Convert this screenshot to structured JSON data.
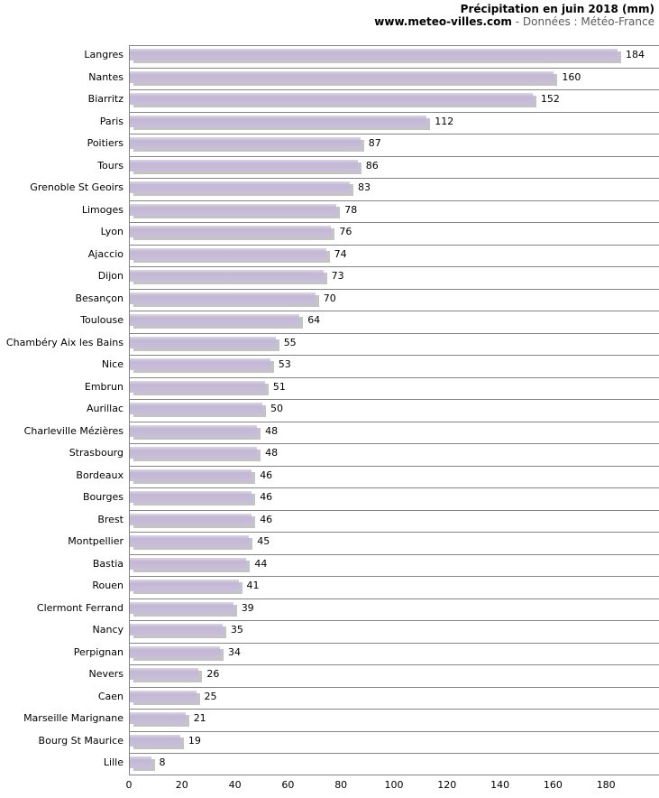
{
  "header": {
    "title": "Précipitation en juin 2018 (mm)",
    "site": "www.meteo-villes.com",
    "separator": " - ",
    "source": "Données : Météo-France"
  },
  "chart_data": {
    "type": "bar",
    "orientation": "horizontal",
    "title": "Précipitation en juin 2018 (mm)",
    "subtitle": "www.meteo-villes.com - Données : Météo-France",
    "categories": [
      "Langres",
      "Nantes",
      "Biarritz",
      "Paris",
      "Poitiers",
      "Tours",
      "Grenoble St Geoirs",
      "Limoges",
      "Lyon",
      "Ajaccio",
      "Dijon",
      "Besançon",
      "Toulouse",
      "Chambéry Aix les Bains",
      "Nice",
      "Embrun",
      "Aurillac",
      "Charleville Mézières",
      "Strasbourg",
      "Bordeaux",
      "Bourges",
      "Brest",
      "Montpellier",
      "Bastia",
      "Rouen",
      "Clermont Ferrand",
      "Nancy",
      "Perpignan",
      "Nevers",
      "Caen",
      "Marseille Marignane",
      "Bourg St Maurice",
      "Lille"
    ],
    "values": [
      184,
      160,
      152,
      112,
      87,
      86,
      83,
      78,
      76,
      74,
      73,
      70,
      64,
      55,
      53,
      51,
      50,
      48,
      48,
      46,
      46,
      46,
      45,
      44,
      41,
      39,
      35,
      34,
      26,
      25,
      21,
      19,
      8
    ],
    "xlabel": "",
    "ylabel": "",
    "xlim": [
      0,
      200
    ],
    "xticks": [
      0,
      20,
      40,
      60,
      80,
      100,
      120,
      140,
      160,
      180
    ],
    "grid": "horizontal row separators",
    "legend": "none",
    "value_labels": "at bar end",
    "colors": {
      "bar_fill": "#C9BFDA",
      "bar_highlight": "#DCD6E8",
      "bar_shadow": "#7D7D7D",
      "gridline": "#848484",
      "title_text": "#000000",
      "subtitle_text": "#5A5A5A",
      "label_text": "#000000",
      "background": "#FFFFFF"
    }
  }
}
